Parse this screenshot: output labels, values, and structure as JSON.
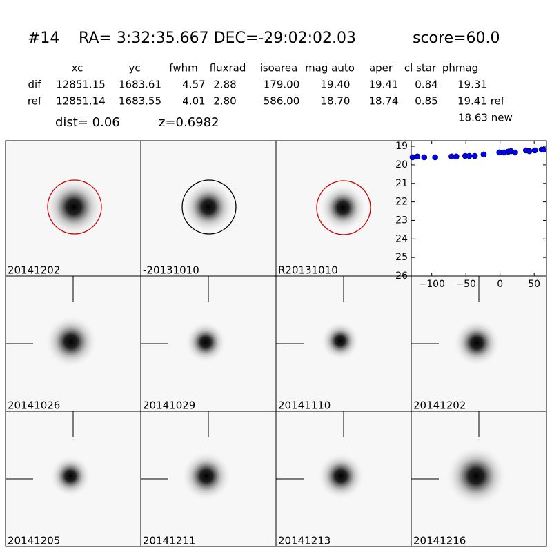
{
  "header": {
    "id": "#14",
    "coords": "RA= 3:32:35.667 DEC=-29:02:02.03",
    "score": "score=60.0"
  },
  "table": {
    "columns": [
      "xc",
      "yc",
      "fwhm",
      "fluxrad",
      "isoarea",
      "mag auto",
      "aper",
      "cl star",
      "phmag"
    ],
    "rows": [
      [
        "dif",
        "12851.15",
        "1683.61",
        "4.57",
        "2.88",
        "179.00",
        "19.40",
        "19.41",
        "0.84",
        "19.31"
      ],
      [
        "ref",
        "12851.14",
        "1683.55",
        "4.01",
        "2.80",
        "586.00",
        "18.70",
        "18.74",
        "0.85",
        "19.41 ref"
      ]
    ],
    "extra": "18.63 new"
  },
  "dist": "dist=  0.06",
  "z": "z=0.6982",
  "stamps": [
    "20141202",
    "-20131010",
    "R20131010",
    "20141026",
    "20141029",
    "20141110",
    "20141202",
    "20141205",
    "20141211",
    "20141213",
    "20141216"
  ],
  "chart_data": {
    "type": "scatter",
    "color": "#0000ff",
    "x": [
      -128,
      -121,
      -111,
      -95,
      -71,
      -64,
      -51,
      -45,
      -37,
      -24,
      -1,
      6,
      12,
      16,
      22,
      38,
      43,
      51,
      61,
      64
    ],
    "values": [
      19.59,
      19.55,
      19.59,
      19.59,
      19.55,
      19.55,
      19.52,
      19.52,
      19.52,
      19.44,
      19.33,
      19.33,
      19.29,
      19.26,
      19.33,
      19.22,
      19.26,
      19.22,
      19.18,
      19.18
    ],
    "xlim": [
      -130,
      68
    ],
    "ylim": [
      26,
      18.7
    ],
    "xticks": [
      {
        "value": -100,
        "label": "−100"
      },
      {
        "value": -50,
        "label": "−50"
      },
      0,
      50
    ],
    "yticks": [
      19,
      20,
      21,
      22,
      23,
      24,
      25,
      26
    ]
  }
}
